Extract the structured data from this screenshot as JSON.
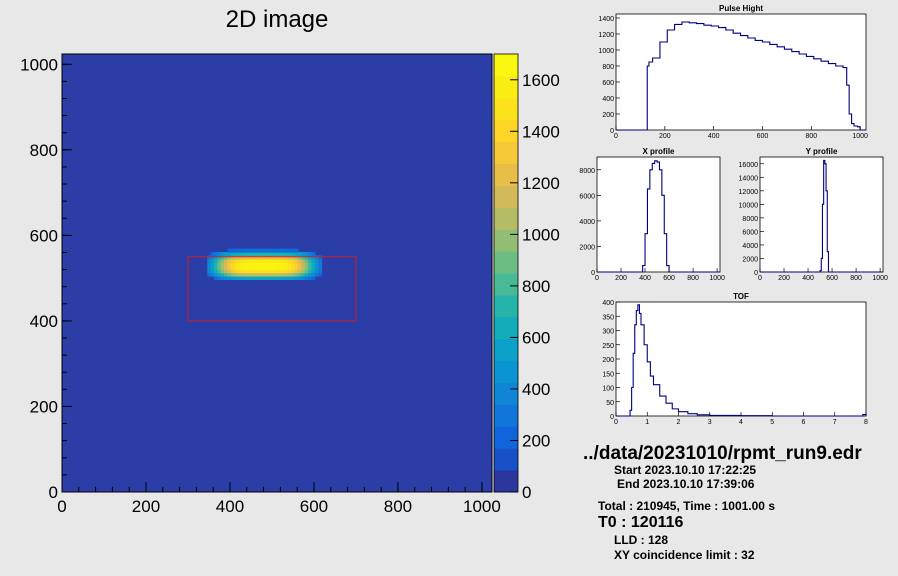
{
  "chart_data": [
    {
      "type": "heatmap",
      "title": "2D image",
      "x_ticks": [
        "0",
        "200",
        "400",
        "600",
        "800",
        "1000"
      ],
      "y_ticks": [
        "0",
        "200",
        "400",
        "600",
        "800",
        "1000"
      ],
      "xlim": [
        0,
        1024
      ],
      "ylim": [
        0,
        1024
      ],
      "colorbar_ticks": [
        "0",
        "200",
        "400",
        "600",
        "800",
        "1000",
        "1200",
        "1400",
        "1600"
      ],
      "colorbar_range": [
        0,
        1700
      ],
      "background_color": "#2b3ea8",
      "hot_region": {
        "x": [
          370,
          590
        ],
        "y": [
          505,
          555
        ],
        "peak": 1650
      },
      "roi_box": {
        "x": [
          300,
          700
        ],
        "y": [
          400,
          550
        ],
        "color": "#cc2020"
      }
    },
    {
      "type": "line",
      "title": "Pulse Hight",
      "x_ticks": [
        "0",
        "200",
        "400",
        "600",
        "800",
        "1000"
      ],
      "y_ticks": [
        "0",
        "200",
        "400",
        "600",
        "800",
        "1000",
        "1200",
        "1400"
      ],
      "xlim": [
        0,
        1024
      ],
      "ylim": [
        0,
        1450
      ],
      "x": [
        0,
        120,
        128,
        135,
        150,
        180,
        210,
        240,
        270,
        300,
        330,
        360,
        390,
        420,
        450,
        480,
        510,
        540,
        570,
        600,
        630,
        660,
        690,
        720,
        750,
        780,
        810,
        840,
        870,
        900,
        930,
        945,
        955,
        965,
        975,
        990,
        1000,
        1024
      ],
      "values": [
        0,
        0,
        800,
        850,
        900,
        1100,
        1250,
        1320,
        1350,
        1340,
        1330,
        1310,
        1300,
        1280,
        1250,
        1210,
        1180,
        1150,
        1120,
        1100,
        1070,
        1040,
        1010,
        980,
        950,
        920,
        890,
        860,
        830,
        800,
        780,
        560,
        200,
        80,
        50,
        40,
        0,
        0
      ],
      "color": "#000080"
    },
    {
      "type": "line",
      "title": "X profile",
      "x_ticks": [
        "0",
        "200",
        "400",
        "600",
        "800",
        "1000"
      ],
      "y_ticks": [
        "0",
        "2000",
        "4000",
        "6000",
        "8000"
      ],
      "xlim": [
        0,
        1024
      ],
      "ylim": [
        0,
        9000
      ],
      "x": [
        0,
        360,
        380,
        400,
        420,
        440,
        460,
        480,
        500,
        520,
        540,
        560,
        580,
        600,
        1024
      ],
      "values": [
        0,
        0,
        500,
        3000,
        6500,
        8000,
        8500,
        8700,
        8600,
        8000,
        6000,
        3000,
        500,
        0,
        0
      ],
      "color": "#000080"
    },
    {
      "type": "line",
      "title": "Y profile",
      "x_ticks": [
        "0",
        "200",
        "400",
        "600",
        "800",
        "1000"
      ],
      "y_ticks": [
        "0",
        "2000",
        "4000",
        "6000",
        "8000",
        "10000",
        "12000",
        "14000",
        "16000"
      ],
      "xlim": [
        0,
        1024
      ],
      "ylim": [
        0,
        17000
      ],
      "x": [
        0,
        490,
        500,
        510,
        520,
        530,
        540,
        550,
        560,
        570,
        1024
      ],
      "values": [
        0,
        0,
        200,
        2000,
        10000,
        16500,
        16000,
        12000,
        3000,
        0,
        0
      ],
      "color": "#000080"
    },
    {
      "type": "line",
      "title": "TOF",
      "x_ticks": [
        "0",
        "1",
        "2",
        "3",
        "4",
        "5",
        "6",
        "7",
        "8"
      ],
      "y_ticks": [
        "0",
        "50",
        "100",
        "150",
        "200",
        "250",
        "300",
        "350",
        "400"
      ],
      "xlim": [
        0,
        8
      ],
      "ylim": [
        0,
        400
      ],
      "x": [
        0,
        0.4,
        0.45,
        0.5,
        0.55,
        0.6,
        0.65,
        0.7,
        0.75,
        0.8,
        0.9,
        1.0,
        1.1,
        1.2,
        1.4,
        1.6,
        1.8,
        2.0,
        2.3,
        2.6,
        3.0,
        4.0,
        5.0,
        6.0,
        7.0,
        7.9,
        8.0
      ],
      "values": [
        0,
        0,
        20,
        100,
        220,
        320,
        370,
        390,
        360,
        320,
        250,
        190,
        140,
        110,
        70,
        45,
        25,
        15,
        8,
        4,
        2,
        1,
        0,
        0,
        0,
        5,
        0
      ],
      "color": "#000080"
    }
  ],
  "info": {
    "file": "../data/20231010/rpmt_run9.edr",
    "start": "Start   2023.10.10 17:22:25",
    "end": "End   2023.10.10 17:39:06",
    "total": "Total : 210945, Time : 1001.00 s",
    "t0": "T0 : 120116",
    "lld": "LLD : 128",
    "xy": "XY coincidence limit : 32"
  }
}
